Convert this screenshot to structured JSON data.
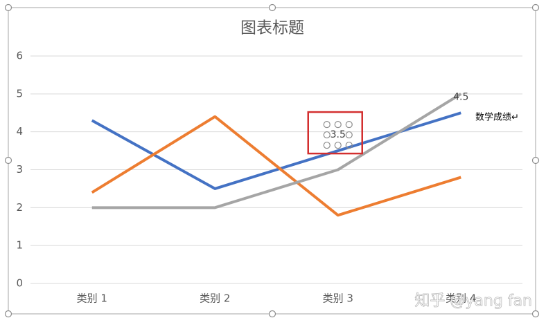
{
  "chart_data": {
    "type": "line",
    "title": "图表标题",
    "categories": [
      "类别 1",
      "类别 2",
      "类别 3",
      "类别 4"
    ],
    "series": [
      {
        "color": "#4472c4",
        "values": [
          4.3,
          2.5,
          3.5,
          4.5
        ],
        "labeled_points": [
          2,
          3
        ]
      },
      {
        "color": "#ed7d31",
        "values": [
          2.4,
          4.4,
          1.8,
          2.8
        ]
      },
      {
        "color": "#a5a5a5",
        "values": [
          2,
          2,
          3,
          5
        ]
      }
    ],
    "ylim": [
      0,
      6
    ],
    "yticks": [
      0,
      1,
      2,
      3,
      4,
      5,
      6
    ],
    "grid": true,
    "annotation": "数学成绩↵"
  },
  "watermark": "知乎 @yang fan"
}
